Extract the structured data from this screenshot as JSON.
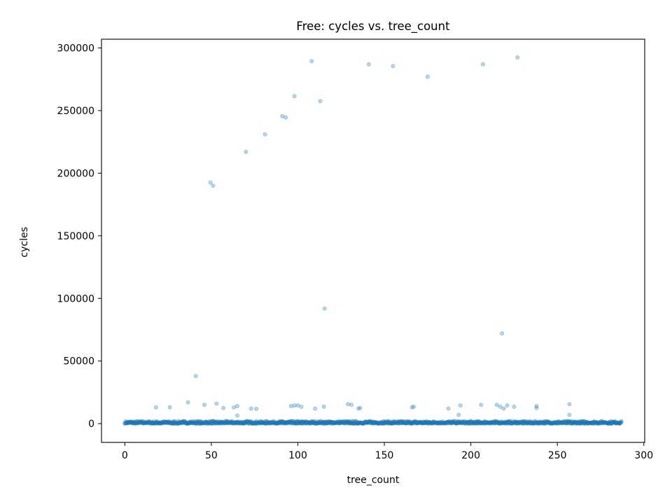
{
  "chart_data": {
    "type": "scatter",
    "title": "Free: cycles vs. tree_count",
    "xlabel": "tree_count",
    "ylabel": "cycles",
    "xlim": [
      -13.5,
      300.5
    ],
    "ylim": [
      -15000,
      307000
    ],
    "xticks": [
      0,
      50,
      100,
      150,
      200,
      250,
      300
    ],
    "yticks": [
      0,
      50000,
      100000,
      150000,
      200000,
      250000,
      300000
    ],
    "xtick_labels": [
      "0",
      "50",
      "100",
      "150",
      "200",
      "250",
      "300"
    ],
    "ytick_labels": [
      "0",
      "50000",
      "100000",
      "150000",
      "200000",
      "250000",
      "300000"
    ],
    "grid": false,
    "marker_color": "#1f77b4",
    "marker_alpha": 0.3,
    "baseline_band": {
      "x_range": [
        0,
        287
      ],
      "cycles_range": [
        0,
        2000
      ],
      "description_count": "dense"
    },
    "series": [
      {
        "x": [
          108,
          227,
          141,
          155,
          207,
          175,
          98,
          113,
          91,
          93,
          81,
          70,
          49.5,
          51,
          115.5,
          218,
          41,
          36.5,
          53,
          46,
          65,
          73,
          63,
          57,
          76,
          98,
          100,
          102,
          96,
          110,
          115,
          129,
          131,
          136,
          135,
          166,
          167,
          187,
          194,
          206,
          215,
          217,
          221,
          225,
          219,
          238,
          238,
          257,
          18,
          26,
          193,
          257,
          65
        ],
        "y": [
          289500,
          292500,
          287000,
          285500,
          287000,
          277000,
          261500,
          257500,
          245500,
          244500,
          231000,
          217000,
          192500,
          190000,
          92000,
          72000,
          38000,
          17000,
          16000,
          15000,
          14000,
          12000,
          13000,
          12500,
          11800,
          14500,
          14500,
          13500,
          14000,
          12000,
          13500,
          15500,
          15000,
          12500,
          12000,
          13000,
          13500,
          12000,
          14500,
          15000,
          15000,
          13500,
          14500,
          13500,
          12000,
          14000,
          12500,
          15500,
          13000,
          13000,
          7000,
          7000,
          6500
        ]
      }
    ]
  }
}
